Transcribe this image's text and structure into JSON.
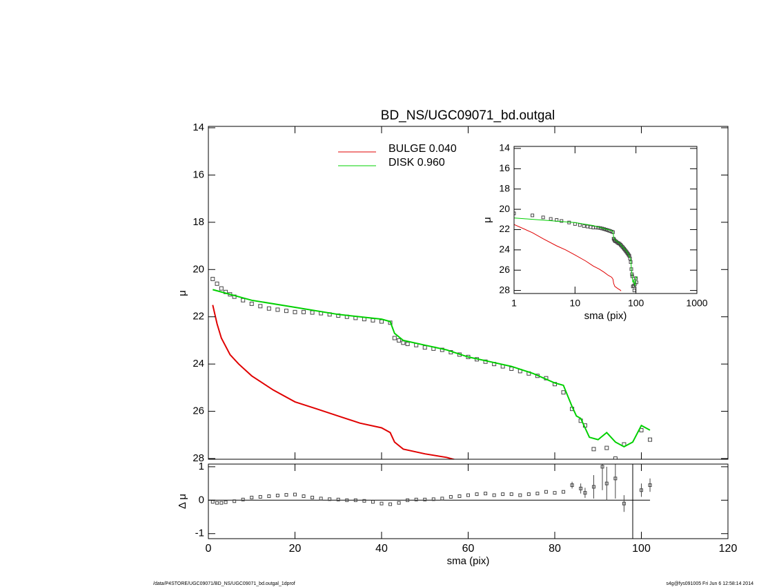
{
  "chart_data": [
    {
      "type": "line",
      "title": "BD_NS/UGC09071_bd.outgal",
      "ylabel": "μ",
      "xlim": [
        0,
        120
      ],
      "ylim": [
        28,
        14
      ],
      "yticks": [
        14,
        16,
        18,
        20,
        22,
        24,
        26,
        28
      ],
      "series": [
        {
          "name": "BULGE  0.040",
          "color": "#e00000",
          "x": [
            1,
            2,
            3,
            5,
            7,
            10,
            15,
            20,
            25,
            30,
            35,
            40,
            42,
            43,
            45,
            50,
            55,
            57
          ],
          "values": [
            21.5,
            22.3,
            22.9,
            23.6,
            24.0,
            24.5,
            25.1,
            25.6,
            25.9,
            26.2,
            26.5,
            26.7,
            26.9,
            27.3,
            27.6,
            27.8,
            27.95,
            28.05
          ]
        },
        {
          "name": "DISK  0.960",
          "color": "#00d000",
          "x": [
            1,
            10,
            20,
            30,
            40,
            42,
            43,
            45,
            50,
            55,
            60,
            65,
            70,
            75,
            80,
            82,
            84,
            85,
            86,
            88,
            90,
            92,
            94,
            96,
            98,
            100,
            102
          ],
          "values": [
            20.85,
            21.3,
            21.6,
            21.9,
            22.1,
            22.2,
            22.7,
            23.0,
            23.2,
            23.4,
            23.7,
            23.9,
            24.1,
            24.4,
            24.8,
            24.9,
            25.8,
            26.2,
            26.3,
            27.1,
            27.2,
            26.9,
            27.3,
            27.5,
            27.3,
            26.6,
            26.8
          ]
        }
      ],
      "points": {
        "color": "#444444",
        "x": [
          1,
          2,
          3,
          4,
          5,
          6,
          8,
          10,
          12,
          14,
          16,
          18,
          20,
          22,
          24,
          26,
          28,
          30,
          32,
          34,
          36,
          38,
          40,
          42,
          43,
          44,
          45,
          46,
          48,
          50,
          52,
          54,
          56,
          58,
          60,
          62,
          64,
          66,
          68,
          70,
          72,
          74,
          76,
          78,
          80,
          82,
          84,
          86,
          87,
          89,
          92,
          94,
          96,
          100,
          102
        ],
        "values": [
          20.4,
          20.6,
          20.8,
          20.95,
          21.05,
          21.15,
          21.3,
          21.45,
          21.55,
          21.65,
          21.7,
          21.75,
          21.8,
          21.8,
          21.82,
          21.85,
          21.9,
          21.95,
          22.0,
          22.05,
          22.1,
          22.15,
          22.2,
          22.25,
          22.9,
          23.0,
          23.1,
          23.15,
          23.2,
          23.3,
          23.35,
          23.4,
          23.5,
          23.6,
          23.7,
          23.8,
          23.9,
          24.0,
          24.1,
          24.2,
          24.3,
          24.4,
          24.5,
          24.6,
          24.85,
          25.2,
          25.9,
          26.4,
          26.6,
          27.6,
          27.55,
          28.0,
          27.4,
          26.8,
          27.2
        ]
      }
    },
    {
      "type": "errorbar",
      "xlabel": "sma (pix)",
      "ylabel": "Δ μ",
      "xlim": [
        0,
        120
      ],
      "ylim": [
        -1.15,
        1.08
      ],
      "xticks": [
        0,
        20,
        40,
        60,
        80,
        100,
        120
      ],
      "yticks": [
        -1,
        0,
        1
      ],
      "color": "#444444",
      "x": [
        1,
        2,
        3,
        4,
        6,
        8,
        10,
        12,
        14,
        16,
        18,
        20,
        22,
        24,
        26,
        28,
        30,
        32,
        34,
        36,
        38,
        40,
        42,
        44,
        46,
        48,
        50,
        52,
        54,
        56,
        58,
        60,
        62,
        64,
        66,
        68,
        70,
        72,
        74,
        76,
        78,
        80,
        82,
        84,
        86,
        87,
        89,
        91,
        92,
        94,
        96,
        100,
        102
      ],
      "values": [
        -0.05,
        -0.08,
        -0.08,
        -0.06,
        -0.03,
        0.02,
        0.08,
        0.1,
        0.12,
        0.14,
        0.16,
        0.17,
        0.12,
        0.08,
        0.05,
        0.03,
        0.02,
        0.0,
        0.0,
        -0.02,
        -0.05,
        -0.1,
        -0.12,
        -0.08,
        0.0,
        0.02,
        0.02,
        0.03,
        0.05,
        0.1,
        0.12,
        0.15,
        0.18,
        0.2,
        0.15,
        0.18,
        0.18,
        0.15,
        0.18,
        0.2,
        0.25,
        0.22,
        0.25,
        0.45,
        0.35,
        0.22,
        0.4,
        1.0,
        0.5,
        0.65,
        -0.1,
        0.3,
        0.45
      ],
      "errors": [
        0,
        0,
        0,
        0,
        0,
        0,
        0,
        0,
        0,
        0,
        0,
        0,
        0,
        0,
        0,
        0,
        0,
        0,
        0,
        0,
        0,
        0,
        0,
        0,
        0,
        0,
        0,
        0,
        0,
        0,
        0,
        0,
        0,
        0,
        0,
        0,
        0,
        0,
        0,
        0,
        0,
        0,
        0,
        0.1,
        0.15,
        0.15,
        0.35,
        0.7,
        0.5,
        0.6,
        0.25,
        0.2,
        0.2
      ]
    },
    {
      "type": "line",
      "log_x": true,
      "xlabel": "sma (pix)",
      "ylabel": "μ",
      "xlim": [
        1,
        1000
      ],
      "ylim": [
        28.3,
        13.8
      ],
      "xticks": [
        1,
        10,
        100,
        1000
      ],
      "yticks": [
        14,
        16,
        18,
        20,
        22,
        24,
        26,
        28
      ]
    }
  ],
  "footer": {
    "left": "/data/P4STORE/UGC09071/BD_NS/UGC09071_bd.outgal_1dprof",
    "right": "s4g@fys091005  Fri Jun  6 12:58:14 2014"
  }
}
